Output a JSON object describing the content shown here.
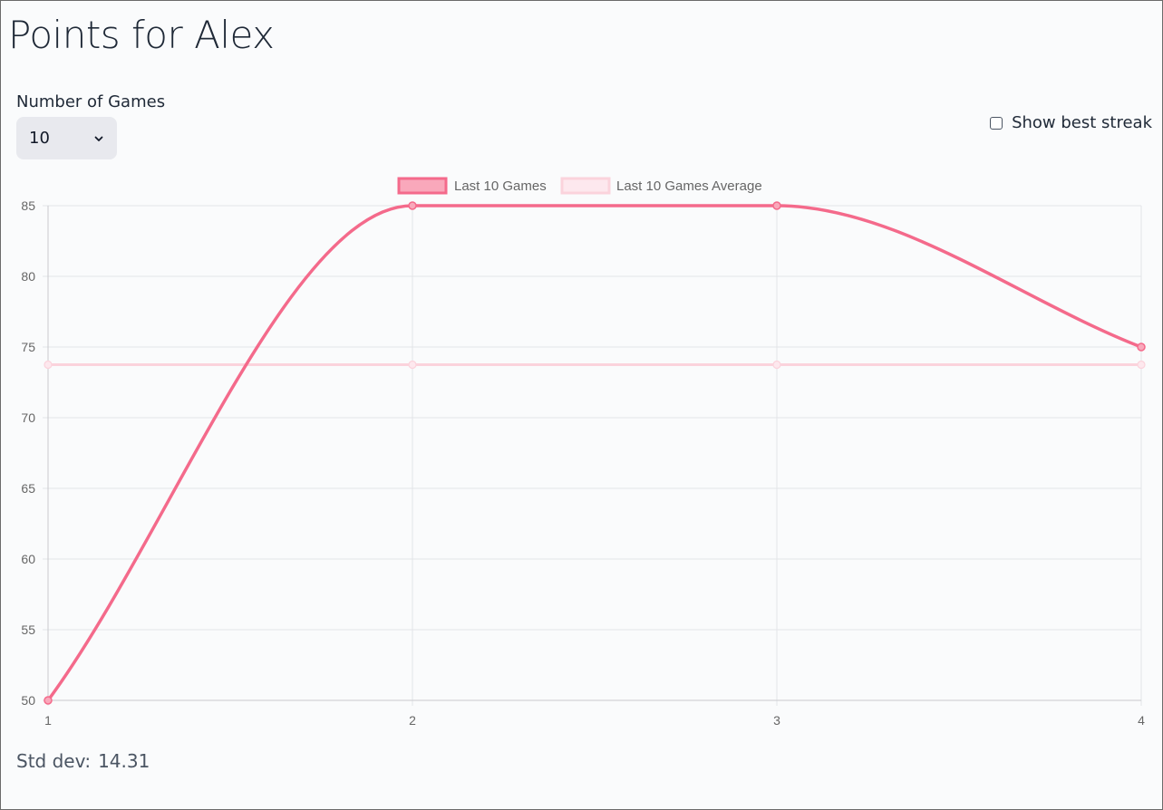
{
  "header": {
    "title": "Points for Alex"
  },
  "controls": {
    "games_label": "Number of Games",
    "games_selected": "10",
    "best_streak_label": "Show best streak",
    "best_streak_checked": false
  },
  "stats": {
    "std_dev_label": "Std dev:",
    "std_dev_value": "14.31"
  },
  "colors": {
    "series_line": "#f46a8b",
    "series_fill": "#f9a8bb",
    "average_line": "#fbd3dc",
    "grid": "#e3e4e8",
    "tick_text": "#666666"
  },
  "chart_data": {
    "type": "line",
    "x": [
      1,
      2,
      3,
      4
    ],
    "series": [
      {
        "name": "Last 10 Games",
        "values": [
          50,
          85,
          85,
          75
        ]
      },
      {
        "name": "Last 10 Games Average",
        "values": [
          73.75,
          73.75,
          73.75,
          73.75
        ]
      }
    ],
    "ylim": [
      50,
      85
    ],
    "yticks": [
      85,
      80,
      75,
      70,
      65,
      60,
      55,
      50
    ],
    "xticks": [
      1,
      2,
      3,
      4
    ],
    "grid": true,
    "legend": "top-center",
    "title": "",
    "xlabel": "",
    "ylabel": ""
  }
}
